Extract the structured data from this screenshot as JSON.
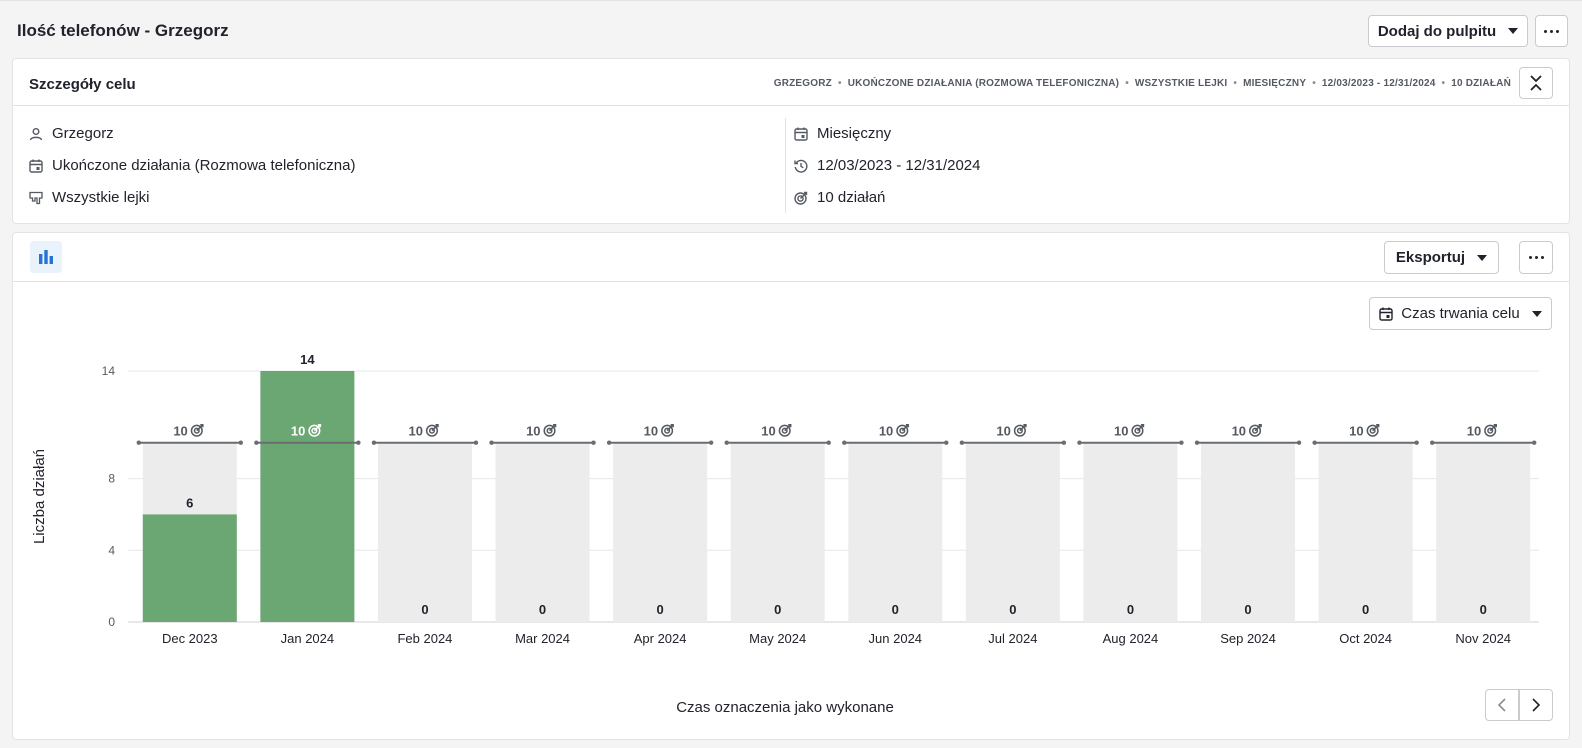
{
  "header": {
    "title": "Ilość telefonów - Grzegorz",
    "add_to_dashboard_label": "Dodaj do pulpitu"
  },
  "details": {
    "title": "Szczegóły celu",
    "crumbs": [
      "GRZEGORZ",
      "UKOŃCZONE DZIAŁANIA (ROZMOWA TELEFONICZNA)",
      "WSZYSTKIE LEJKI",
      "MIESIĘCZNY",
      "12/03/2023 - 12/31/2024",
      "10 DZIAŁAŃ"
    ],
    "assignee": "Grzegorz",
    "activity_type": "Ukończone działania (Rozmowa telefoniczna)",
    "pipelines": "Wszystkie lejki",
    "interval": "Miesięczny",
    "period": "12/03/2023 - 12/31/2024",
    "target": "10 działań"
  },
  "chart_toolbar": {
    "export_label": "Eksportuj",
    "duration_label": "Czas trwania celu"
  },
  "chart_data": {
    "type": "bar",
    "categories": [
      "Dec 2023",
      "Jan 2024",
      "Feb 2024",
      "Mar 2024",
      "Apr 2024",
      "May 2024",
      "Jun 2024",
      "Jul 2024",
      "Aug 2024",
      "Sep 2024",
      "Oct 2024",
      "Nov 2024"
    ],
    "values": [
      6,
      14,
      0,
      0,
      0,
      0,
      0,
      0,
      0,
      0,
      0,
      0
    ],
    "goal": 10,
    "goal_labels": [
      "10",
      "10",
      "10",
      "10",
      "10",
      "10",
      "10",
      "10",
      "10",
      "10",
      "10",
      "10"
    ],
    "ylabel": "Liczba działań",
    "xlabel": "Czas oznaczenia jako wykonane",
    "yticks": [
      0,
      4,
      8,
      14
    ],
    "ylim": [
      0,
      14
    ],
    "grid": true,
    "colors": {
      "achieved": "#6aa772",
      "remaining": "#ececec",
      "goal_line": "#6a6d73"
    }
  }
}
